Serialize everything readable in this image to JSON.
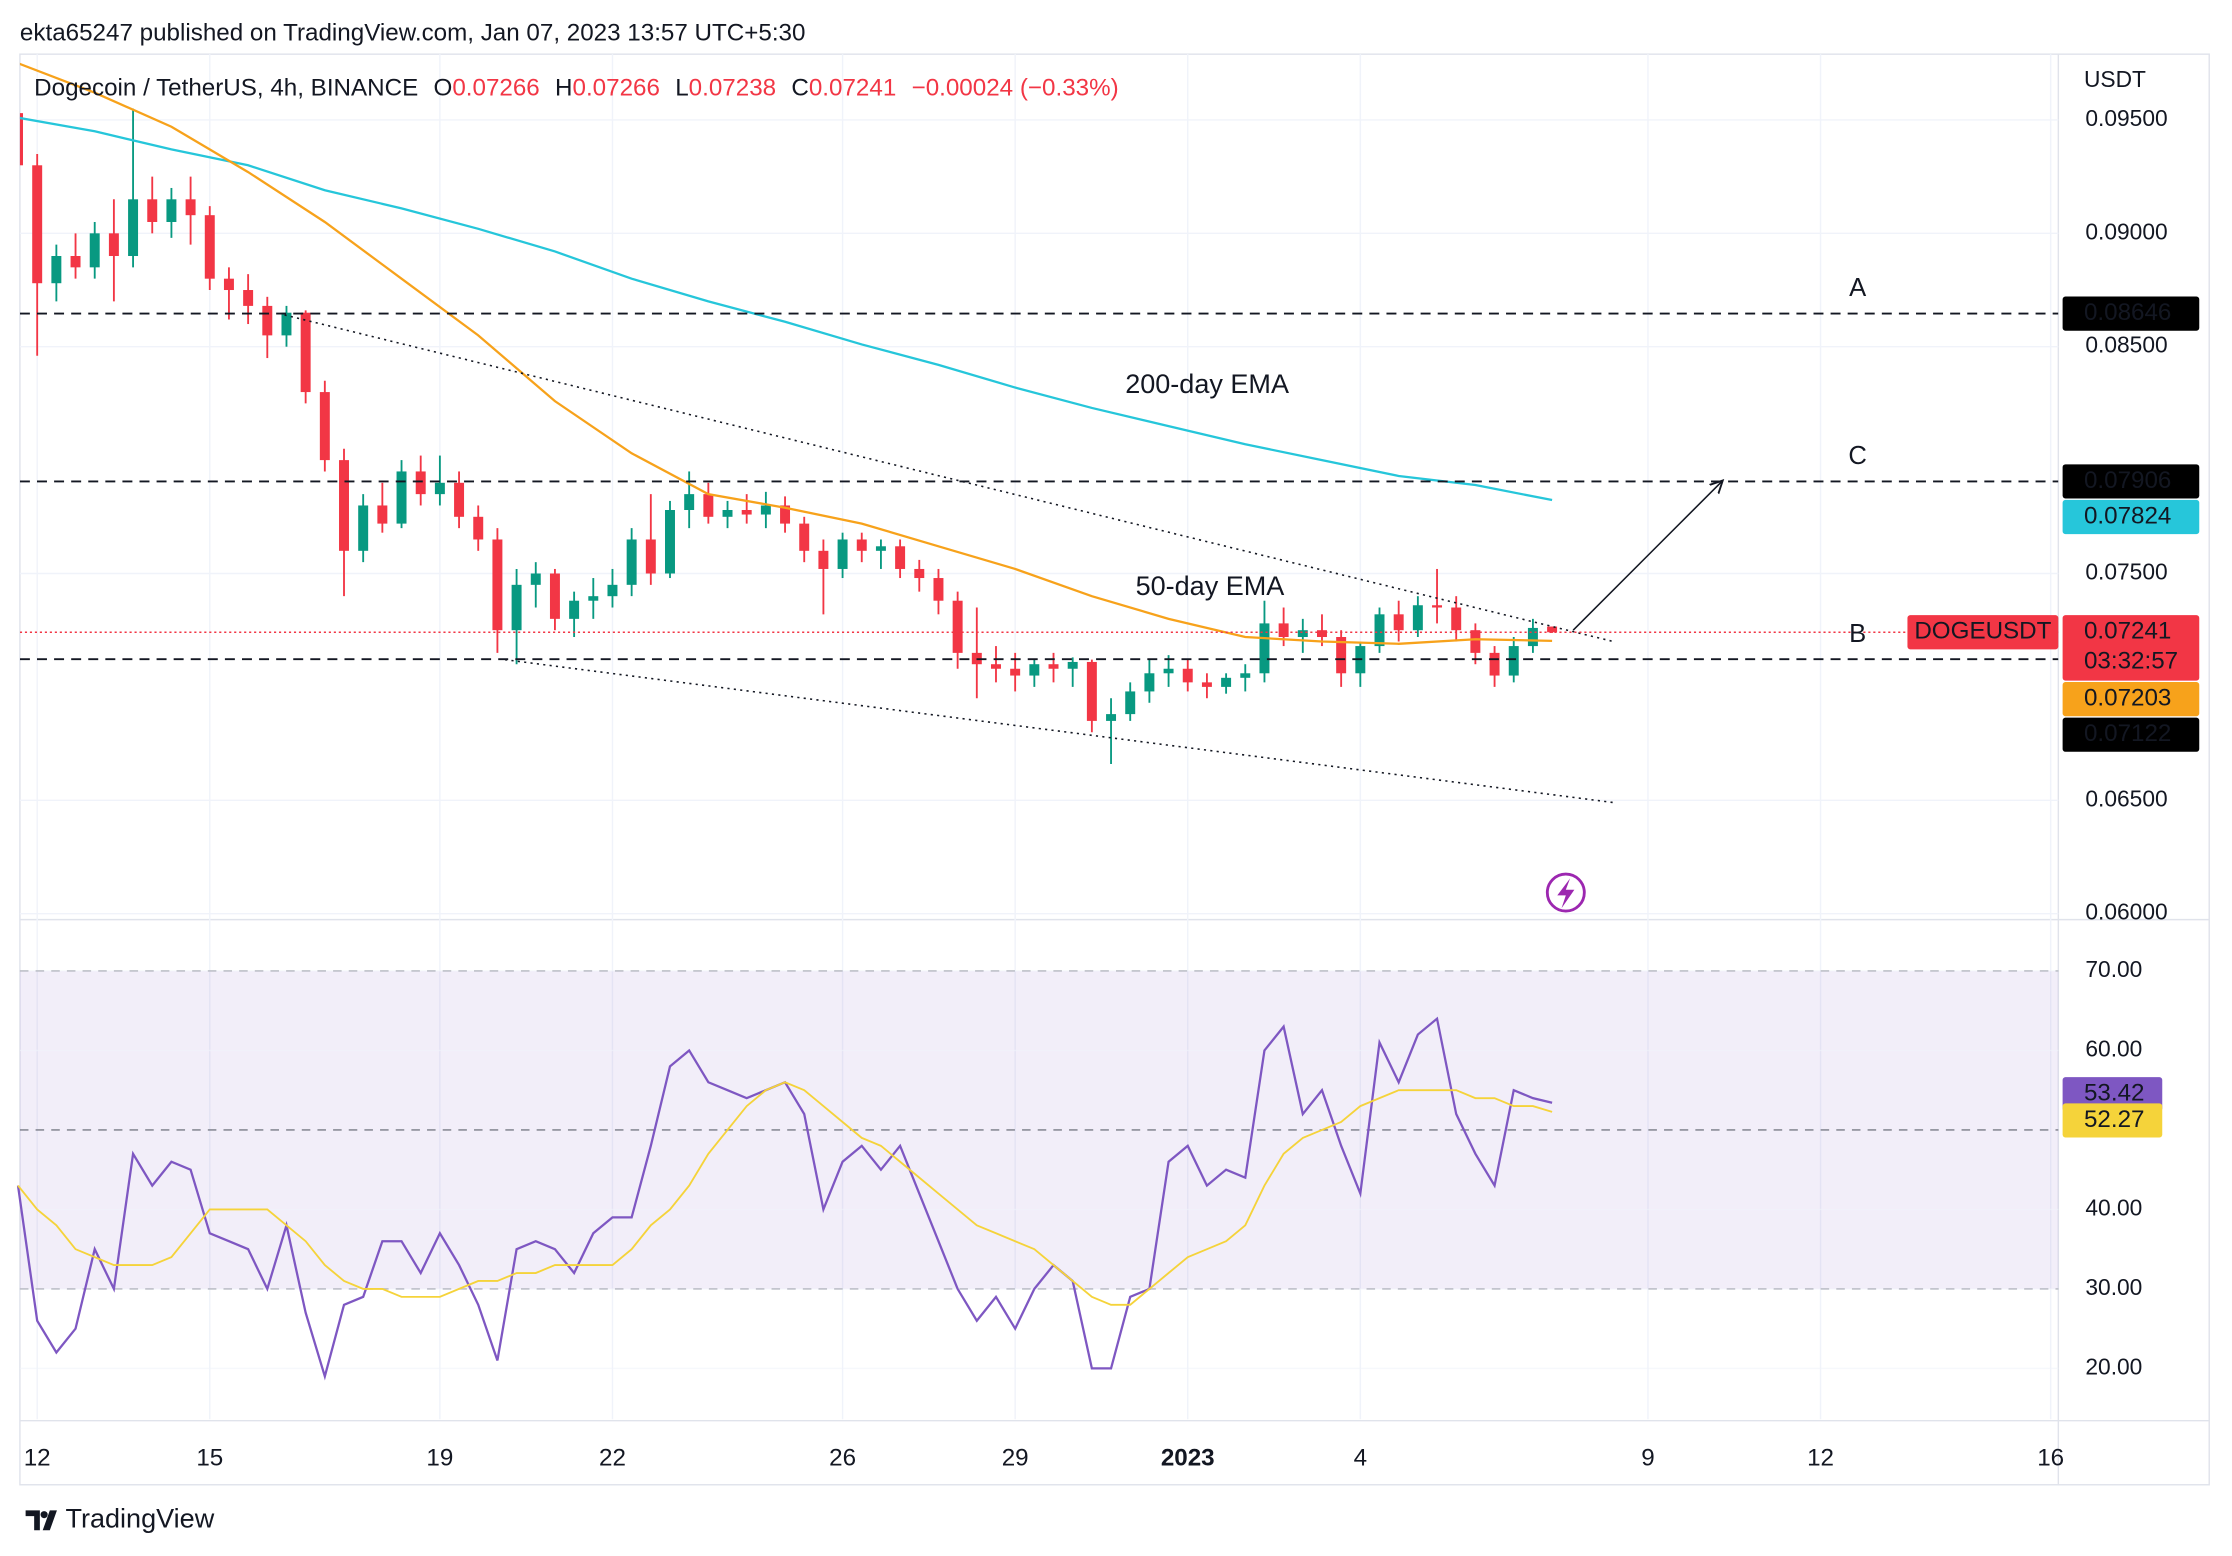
{
  "header": {
    "text": "ekta65247 published on TradingView.com, Jan 07, 2023 13:57 UTC+5:30"
  },
  "footer": {
    "brand": "TradingView"
  },
  "chart_data": [
    {
      "type": "candlestick",
      "legend_title": "Dogecoin / TetherUS, 4h, BINANCE",
      "ohlc_labels": [
        "O",
        "H",
        "L",
        "C"
      ],
      "change": "−0.00024 (−0.33%)",
      "currency": "USDT",
      "up_color": "#089981",
      "down_color": "#f23645",
      "x": [
        2,
        3,
        4,
        5,
        6,
        7,
        8,
        9,
        10,
        11,
        12,
        13,
        14,
        15,
        16,
        17,
        18,
        19,
        20,
        21,
        22,
        23,
        24,
        25,
        26,
        27,
        28,
        29,
        30,
        31,
        32,
        33,
        34,
        35,
        36,
        37,
        38,
        39,
        40,
        41,
        42,
        43,
        44,
        45,
        46,
        47,
        48,
        49,
        50,
        51,
        52,
        53,
        54,
        55,
        56,
        57,
        58,
        59,
        60,
        61,
        62,
        63,
        64,
        65,
        66,
        67,
        68,
        69,
        70,
        71,
        72,
        73,
        74,
        75,
        76,
        77,
        78,
        79,
        80,
        81,
        82
      ],
      "open": [
        0.0953,
        0.093,
        0.0878,
        0.089,
        0.0885,
        0.09,
        0.089,
        0.0915,
        0.0905,
        0.0915,
        0.0908,
        0.088,
        0.0875,
        0.0868,
        0.0855,
        0.0865,
        0.083,
        0.08,
        0.076,
        0.078,
        0.0772,
        0.0795,
        0.0785,
        0.079,
        0.0775,
        0.0765,
        0.0725,
        0.0745,
        0.075,
        0.073,
        0.0738,
        0.074,
        0.0745,
        0.0765,
        0.075,
        0.0778,
        0.0785,
        0.0775,
        0.0778,
        0.0776,
        0.078,
        0.0772,
        0.076,
        0.0752,
        0.0765,
        0.076,
        0.0762,
        0.0752,
        0.0748,
        0.0738,
        0.0715,
        0.071,
        0.0708,
        0.0705,
        0.071,
        0.0708,
        0.0711,
        0.0685,
        0.0688,
        0.0698,
        0.0706,
        0.0708,
        0.0702,
        0.07,
        0.0704,
        0.0706,
        0.0728,
        0.0722,
        0.0725,
        0.0722,
        0.0706,
        0.0718,
        0.0732,
        0.0725,
        0.0736,
        0.0735,
        0.0725,
        0.0715,
        0.0705,
        0.0718,
        0.07266
      ],
      "high": [
        0.0958,
        0.0935,
        0.0895,
        0.09,
        0.0905,
        0.0915,
        0.0955,
        0.0925,
        0.092,
        0.0925,
        0.0912,
        0.0885,
        0.0882,
        0.0872,
        0.0868,
        0.0866,
        0.0835,
        0.0805,
        0.0785,
        0.079,
        0.08,
        0.0802,
        0.0802,
        0.0795,
        0.078,
        0.077,
        0.0752,
        0.0755,
        0.0752,
        0.0742,
        0.0748,
        0.0752,
        0.077,
        0.0785,
        0.0782,
        0.0795,
        0.079,
        0.0782,
        0.0785,
        0.0786,
        0.0784,
        0.0775,
        0.0765,
        0.0768,
        0.0768,
        0.0765,
        0.0765,
        0.0756,
        0.0752,
        0.0742,
        0.0735,
        0.0718,
        0.0715,
        0.0712,
        0.0715,
        0.0713,
        0.0712,
        0.0695,
        0.0702,
        0.0712,
        0.0714,
        0.0712,
        0.0706,
        0.0706,
        0.071,
        0.0738,
        0.0735,
        0.073,
        0.0732,
        0.0725,
        0.072,
        0.0735,
        0.0738,
        0.074,
        0.0752,
        0.074,
        0.0728,
        0.0718,
        0.0722,
        0.073,
        0.07266
      ],
      "low": [
        0.0925,
        0.0846,
        0.087,
        0.088,
        0.088,
        0.087,
        0.0885,
        0.09,
        0.0898,
        0.0895,
        0.0875,
        0.0862,
        0.086,
        0.0845,
        0.085,
        0.0825,
        0.0795,
        0.074,
        0.0755,
        0.0768,
        0.077,
        0.078,
        0.078,
        0.077,
        0.076,
        0.0715,
        0.071,
        0.0735,
        0.0725,
        0.0722,
        0.073,
        0.0735,
        0.074,
        0.0745,
        0.0748,
        0.077,
        0.0772,
        0.077,
        0.0772,
        0.077,
        0.0768,
        0.0755,
        0.0732,
        0.0748,
        0.0755,
        0.0752,
        0.0748,
        0.0742,
        0.0732,
        0.0708,
        0.0695,
        0.0702,
        0.0698,
        0.07,
        0.0702,
        0.07,
        0.068,
        0.0666,
        0.0685,
        0.0693,
        0.07,
        0.0698,
        0.0695,
        0.0697,
        0.0698,
        0.0702,
        0.0718,
        0.0715,
        0.0718,
        0.07,
        0.07,
        0.0715,
        0.072,
        0.0722,
        0.0728,
        0.072,
        0.071,
        0.07,
        0.0702,
        0.0715,
        0.07238
      ],
      "close": [
        0.093,
        0.0878,
        0.089,
        0.0885,
        0.09,
        0.089,
        0.0915,
        0.0905,
        0.0915,
        0.0908,
        0.088,
        0.0875,
        0.0868,
        0.0855,
        0.0865,
        0.083,
        0.08,
        0.076,
        0.078,
        0.0772,
        0.0795,
        0.0785,
        0.079,
        0.0775,
        0.0765,
        0.0725,
        0.0745,
        0.075,
        0.073,
        0.0738,
        0.074,
        0.0745,
        0.0765,
        0.075,
        0.0778,
        0.0785,
        0.0775,
        0.0778,
        0.0776,
        0.078,
        0.0772,
        0.076,
        0.0752,
        0.0765,
        0.076,
        0.0762,
        0.0752,
        0.0748,
        0.0738,
        0.0715,
        0.071,
        0.0708,
        0.0705,
        0.071,
        0.0708,
        0.0711,
        0.0685,
        0.0688,
        0.0698,
        0.0706,
        0.0708,
        0.0702,
        0.07,
        0.0704,
        0.0706,
        0.0728,
        0.0722,
        0.0725,
        0.0722,
        0.0706,
        0.0718,
        0.0732,
        0.0725,
        0.0736,
        0.0735,
        0.0725,
        0.0715,
        0.0705,
        0.0718,
        0.0726,
        0.07241
      ],
      "series": [
        {
          "name": "200-day EMA",
          "color": "#26c6da",
          "x": [
            2,
            6,
            10,
            14,
            18,
            22,
            26,
            30,
            34,
            38,
            42,
            46,
            50,
            54,
            58,
            62,
            66,
            70,
            74,
            78,
            82
          ],
          "values": [
            0.0951,
            0.0945,
            0.0937,
            0.093,
            0.0919,
            0.0911,
            0.0902,
            0.0892,
            0.088,
            0.087,
            0.0861,
            0.0851,
            0.0842,
            0.0832,
            0.0823,
            0.0815,
            0.0807,
            0.08,
            0.0793,
            0.0789,
            0.07824
          ]
        },
        {
          "name": "50-day EMA",
          "color": "#f7a21b",
          "x": [
            2,
            6,
            10,
            14,
            18,
            22,
            26,
            30,
            34,
            38,
            42,
            46,
            50,
            54,
            58,
            62,
            66,
            70,
            74,
            78,
            82
          ],
          "values": [
            0.0975,
            0.0962,
            0.0947,
            0.0927,
            0.0905,
            0.088,
            0.0855,
            0.0826,
            0.0803,
            0.0785,
            0.0779,
            0.0772,
            0.0762,
            0.0752,
            0.074,
            0.073,
            0.0722,
            0.072,
            0.0719,
            0.0721,
            0.07203
          ]
        }
      ],
      "levels": [
        {
          "name": "A",
          "value": 0.08646
        },
        {
          "name": "C",
          "value": 0.07906
        },
        {
          "name": "B",
          "value": 0.07122
        }
      ],
      "trendlines": [
        {
          "x": [
            15.9,
            85.2
          ],
          "values": [
            0.0864,
            0.072
          ]
        },
        {
          "x": [
            27.4,
            85.2
          ],
          "values": [
            0.0712,
            0.0649
          ]
        }
      ],
      "arrow": {
        "x": [
          83.1,
          90.9
        ],
        "values": [
          0.0725,
          0.0791
        ]
      },
      "last_price": {
        "name": "DOGEUSDT",
        "value": 0.07241,
        "countdown": "03:32:57"
      },
      "xlim": [
        2.1,
        108.4
      ],
      "ylim": [
        0.0598,
        0.0979
      ],
      "yticks": [
        {
          "value": 0.095,
          "label": "0.09500"
        },
        {
          "value": 0.09,
          "label": "0.09000"
        },
        {
          "value": 0.085,
          "label": "0.08500"
        },
        {
          "value": 0.075,
          "label": "0.07500"
        },
        {
          "value": 0.065,
          "label": "0.06500"
        },
        {
          "value": 0.06,
          "label": "0.06000"
        }
      ]
    },
    {
      "type": "line",
      "series": [
        {
          "color": "#7e57c2",
          "values": [
            43,
            26,
            22,
            25,
            35,
            30,
            47,
            43,
            46,
            45,
            37,
            36,
            35,
            30,
            38,
            27,
            19,
            28,
            29,
            36,
            36,
            32,
            37,
            33,
            28,
            21,
            35,
            36,
            35,
            32,
            37,
            39,
            39,
            48,
            58,
            60,
            56,
            55,
            54,
            55,
            56,
            52,
            40,
            46,
            48,
            45,
            48,
            42,
            36,
            30,
            26,
            29,
            25,
            30,
            33,
            31,
            20,
            20,
            29,
            30,
            46,
            48,
            43,
            45,
            44,
            60,
            63,
            52,
            55,
            48,
            42,
            61,
            56,
            62,
            64,
            52,
            47,
            43,
            55,
            54,
            53.42
          ]
        },
        {
          "color": "#f5d33a",
          "values": [
            43,
            40,
            38,
            35,
            34,
            33,
            33,
            33,
            34,
            37,
            40,
            40,
            40,
            40,
            38,
            36,
            33,
            31,
            30,
            30,
            29,
            29,
            29,
            30,
            31,
            31,
            32,
            32,
            33,
            33,
            33,
            33,
            35,
            38,
            40,
            43,
            47,
            50,
            53,
            55,
            56,
            55,
            53,
            51,
            49,
            48,
            46,
            44,
            42,
            40,
            38,
            37,
            36,
            35,
            33,
            31,
            29,
            28,
            28,
            30,
            32,
            34,
            35,
            36,
            38,
            43,
            47,
            49,
            50,
            51,
            53,
            54,
            55,
            55,
            55,
            55,
            54,
            54,
            53,
            53,
            52.27
          ]
        }
      ],
      "band": [
        30,
        70
      ],
      "levels": [
        30,
        50,
        70
      ],
      "ylim": [
        13.6,
        76.1
      ],
      "yticks": [
        {
          "value": 70,
          "label": "70.00"
        },
        {
          "value": 60,
          "label": "60.00"
        },
        {
          "value": 40,
          "label": "40.00"
        },
        {
          "value": 30,
          "label": "30.00"
        },
        {
          "value": 20,
          "label": "20.00"
        }
      ],
      "xticks": [
        {
          "value": 3,
          "label": "12"
        },
        {
          "value": 12,
          "label": "15"
        },
        {
          "value": 24,
          "label": "19"
        },
        {
          "value": 33,
          "label": "22"
        },
        {
          "value": 45,
          "label": "26"
        },
        {
          "value": 54,
          "label": "29"
        },
        {
          "value": 63,
          "label": "2023"
        },
        {
          "value": 72,
          "label": "4"
        },
        {
          "value": 87,
          "label": "9"
        },
        {
          "value": 96,
          "label": "12"
        },
        {
          "value": 108,
          "label": "16"
        }
      ]
    }
  ]
}
